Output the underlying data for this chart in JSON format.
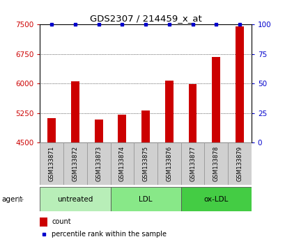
{
  "title": "GDS2307 / 214459_x_at",
  "samples": [
    "GSM133871",
    "GSM133872",
    "GSM133873",
    "GSM133874",
    "GSM133875",
    "GSM133876",
    "GSM133877",
    "GSM133878",
    "GSM133879"
  ],
  "counts": [
    5130,
    6060,
    5080,
    5220,
    5310,
    6080,
    5980,
    6680,
    7450
  ],
  "percentiles": [
    100,
    100,
    100,
    100,
    100,
    100,
    100,
    100,
    100
  ],
  "groups": [
    {
      "label": "untreated",
      "start": 0,
      "end": 3,
      "color": "#b8eeb8"
    },
    {
      "label": "LDL",
      "start": 3,
      "end": 6,
      "color": "#88e888"
    },
    {
      "label": "ox-LDL",
      "start": 6,
      "end": 9,
      "color": "#44cc44"
    }
  ],
  "bar_color": "#cc0000",
  "dot_color": "#0000cc",
  "ylim_left": [
    4500,
    7500
  ],
  "ylim_right": [
    0,
    100
  ],
  "yticks_left": [
    4500,
    5250,
    6000,
    6750,
    7500
  ],
  "yticks_right": [
    0,
    25,
    50,
    75,
    100
  ],
  "bg_color": "#ffffff",
  "grid_color": "#000000",
  "left_tick_color": "#cc0000",
  "right_tick_color": "#0000cc",
  "legend_count_label": "count",
  "legend_pct_label": "percentile rank within the sample",
  "agent_label": "agent",
  "bar_width": 0.35,
  "sample_box_color": "#d0d0d0",
  "sample_box_edge": "#999999"
}
